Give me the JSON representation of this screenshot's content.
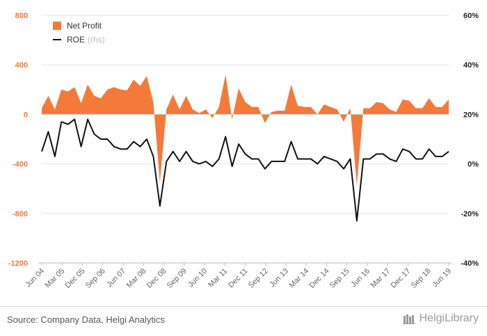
{
  "chart_data": {
    "type": "area+line",
    "x_tick_labels": [
      "Jun 04",
      "Mar 05",
      "Dec 05",
      "Sep 06",
      "Jun 07",
      "Mar 08",
      "Dec 08",
      "Sep 09",
      "Jun 10",
      "Mar 11",
      "Dec 11",
      "Sep 12",
      "Jun 13",
      "Mar 14",
      "Dec 14",
      "Sep 15",
      "Jun 16",
      "Mar 17",
      "Dec 17",
      "Sep 18",
      "Jun 19"
    ],
    "left_axis": {
      "ticks": [
        800,
        400,
        0,
        -400,
        -800,
        -1200
      ],
      "tick_labels": [
        "800",
        "400",
        "0",
        "-400",
        "-800",
        "-1200"
      ],
      "range": [
        -1200,
        800
      ]
    },
    "right_axis": {
      "ticks": [
        60,
        40,
        20,
        0,
        -20,
        -40
      ],
      "tick_labels": [
        "60%",
        "40%",
        "20%",
        "0%",
        "-20%",
        "-40%"
      ],
      "range": [
        -40,
        60
      ]
    },
    "series": [
      {
        "name": "Net Profit",
        "axis": "left",
        "type": "area",
        "color": "#f47a3a",
        "values": [
          50,
          150,
          40,
          200,
          185,
          220,
          90,
          240,
          150,
          130,
          200,
          220,
          200,
          195,
          280,
          230,
          310,
          100,
          -550,
          40,
          160,
          40,
          150,
          40,
          10,
          40,
          -30,
          60,
          320,
          -40,
          210,
          100,
          60,
          60,
          -70,
          20,
          30,
          30,
          240,
          70,
          60,
          60,
          0,
          80,
          60,
          40,
          -60,
          50,
          -575,
          50,
          50,
          100,
          90,
          40,
          20,
          120,
          110,
          50,
          50,
          130,
          60,
          60,
          120
        ],
        "estimated": true
      },
      {
        "name": "ROE",
        "name_note": "(rhs)",
        "axis": "right",
        "type": "line",
        "color": "#111111",
        "values": [
          5,
          13,
          3,
          17,
          16,
          18,
          7,
          18,
          12,
          10,
          10,
          7,
          6,
          6,
          9,
          7,
          10,
          3,
          -17,
          1,
          5,
          1,
          5,
          1,
          0,
          1,
          -1,
          2,
          11,
          -1,
          8,
          4,
          2,
          2,
          -2,
          1,
          1,
          1,
          9,
          2,
          2,
          2,
          0,
          3,
          2,
          1,
          -2,
          2,
          -23,
          2,
          2,
          4,
          4,
          2,
          1,
          6,
          5,
          2,
          2,
          6,
          3,
          3,
          5
        ],
        "estimated": true
      }
    ],
    "grid": "horizontal"
  },
  "legend": {
    "items": [
      {
        "label": "Net Profit",
        "note": "",
        "color": "#f47a3a",
        "kind": "box"
      },
      {
        "label": "ROE",
        "note": "(rhs)",
        "color": "#111111",
        "kind": "line"
      }
    ]
  },
  "footer": {
    "source": "Source: Company Data, Helgi Analytics",
    "brand": "HelgiLibrary"
  }
}
